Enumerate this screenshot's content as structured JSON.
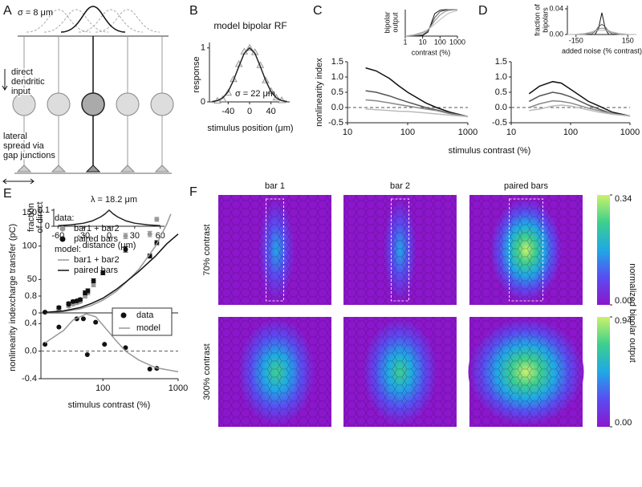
{
  "chart_data": [
    {
      "type": "line",
      "panel": "A",
      "sigma_label": "σ = 8 μm",
      "input_label": [
        "direct",
        "dendritic",
        "input"
      ],
      "spread_label": [
        "lateral",
        "spread via",
        "gap junctions"
      ],
      "annotation": "λ = 18.2 μm",
      "xlabel": "distance (μm)",
      "ylabel": [
        "fraction",
        "of direct"
      ],
      "xlim": [
        -65,
        65
      ],
      "ylim": [
        0,
        0.11
      ],
      "xticks": [
        -60,
        -30,
        0,
        30,
        60
      ],
      "yticks": [
        0,
        0.1
      ],
      "series": [
        {
          "color": "#222222",
          "x": [
            -60,
            -45,
            -30,
            -20,
            -10,
            -5,
            0,
            5,
            10,
            20,
            30,
            45,
            60
          ],
          "values": [
            0.0037,
            0.0084,
            0.019,
            0.033,
            0.058,
            0.076,
            0.1,
            0.076,
            0.058,
            0.033,
            0.019,
            0.0084,
            0.0037
          ]
        }
      ]
    },
    {
      "type": "line",
      "panel": "B",
      "title": "model bipolar RF",
      "annotation": "σ = 22 μm",
      "xlabel": "stimulus position (μm)",
      "ylabel": "response",
      "xlim": [
        -75,
        75
      ],
      "ylim": [
        0,
        1.1
      ],
      "xticks": [
        -40,
        0,
        40
      ],
      "yticks": [
        0,
        1
      ],
      "series": [
        {
          "color": "#999999",
          "marker": "triangle",
          "x": [
            -60,
            -50,
            -40,
            -30,
            -20,
            -10,
            0,
            10,
            20,
            30,
            40,
            50,
            60
          ],
          "values": [
            0.02,
            0.05,
            0.17,
            0.42,
            0.7,
            0.93,
            1.0,
            0.92,
            0.68,
            0.4,
            0.2,
            0.08,
            0.03
          ]
        },
        {
          "color": "#222222",
          "x": [
            -70,
            -60,
            -50,
            -40,
            -30,
            -20,
            -10,
            0,
            10,
            20,
            30,
            40,
            50,
            60,
            70
          ],
          "values": [
            0.006,
            0.024,
            0.076,
            0.19,
            0.4,
            0.66,
            0.9,
            1,
            0.9,
            0.66,
            0.4,
            0.19,
            0.076,
            0.024,
            0.006
          ]
        }
      ]
    },
    {
      "type": "line",
      "panel": "C",
      "xlabel": "stimulus contrast (%)",
      "ylabel": "nonlinearity index",
      "xlog": true,
      "xlim": [
        10,
        1000
      ],
      "ylim": [
        -0.5,
        1.5
      ],
      "xticks": [
        10,
        100,
        1000
      ],
      "yticks": [
        {
          "value": -0.5,
          "label": "-0.5"
        },
        {
          "value": 0,
          "label": "0.0"
        },
        {
          "value": 0.5,
          "label": "0.5"
        },
        {
          "value": 1,
          "label": "1.0"
        },
        {
          "value": 1.5,
          "label": "1.5"
        }
      ],
      "refline": 0,
      "series": [
        {
          "color": "#111111",
          "x": [
            20,
            30,
            50,
            70,
            100,
            200,
            300,
            500,
            1000
          ],
          "values": [
            1.3,
            1.2,
            0.95,
            0.72,
            0.5,
            0.15,
            0.0,
            -0.15,
            -0.3
          ]
        },
        {
          "color": "#555555",
          "x": [
            20,
            30,
            50,
            70,
            100,
            200,
            300,
            500,
            1000
          ],
          "values": [
            0.55,
            0.5,
            0.38,
            0.28,
            0.18,
            0.0,
            -0.08,
            -0.18,
            -0.3
          ]
        },
        {
          "color": "#888888",
          "x": [
            20,
            30,
            50,
            70,
            100,
            200,
            300,
            500,
            1000
          ],
          "values": [
            0.25,
            0.22,
            0.15,
            0.1,
            0.05,
            -0.05,
            -0.1,
            -0.2,
            -0.3
          ]
        },
        {
          "color": "#bbbbbb",
          "x": [
            20,
            30,
            50,
            70,
            100,
            200,
            300,
            500,
            1000
          ],
          "values": [
            -0.05,
            -0.07,
            -0.1,
            -0.12,
            -0.13,
            -0.18,
            -0.21,
            -0.25,
            -0.3
          ]
        }
      ]
    },
    {
      "type": "line",
      "xlabel": "contrast (%)",
      "ylabel": [
        "bipolar",
        "output"
      ],
      "xlog": true,
      "xlim": [
        1,
        1000
      ],
      "ylim": [
        0,
        1
      ],
      "xticks": [
        1,
        10,
        100,
        1000
      ],
      "series": [
        {
          "color": "#111111",
          "x": [
            1,
            3,
            10,
            20,
            30,
            50,
            100,
            200,
            300,
            1000
          ],
          "values": [
            0,
            0,
            0.02,
            0.15,
            0.45,
            0.85,
            0.98,
            1,
            1,
            1
          ]
        },
        {
          "color": "#555555",
          "x": [
            1,
            3,
            10,
            20,
            30,
            50,
            100,
            200,
            300,
            1000
          ],
          "values": [
            0,
            0.01,
            0.05,
            0.2,
            0.4,
            0.7,
            0.92,
            0.98,
            1,
            1
          ]
        },
        {
          "color": "#888888",
          "x": [
            1,
            3,
            10,
            20,
            30,
            50,
            100,
            200,
            300,
            1000
          ],
          "values": [
            0,
            0.03,
            0.12,
            0.25,
            0.38,
            0.58,
            0.8,
            0.93,
            0.97,
            1
          ]
        },
        {
          "color": "#bbbbbb",
          "x": [
            1,
            3,
            10,
            20,
            30,
            50,
            100,
            200,
            300,
            1000
          ],
          "values": [
            0.01,
            0.05,
            0.15,
            0.25,
            0.33,
            0.45,
            0.62,
            0.78,
            0.86,
            0.97
          ]
        }
      ]
    },
    {
      "type": "line",
      "panel": "D",
      "xlog": true,
      "xlim": [
        10,
        1000
      ],
      "ylim": [
        -0.5,
        1.5
      ],
      "xticks": [
        10,
        100,
        1000
      ],
      "yticks": [
        {
          "value": -0.5,
          "label": "-0.5"
        },
        {
          "value": 0,
          "label": "0.0"
        },
        {
          "value": 0.5,
          "label": "0.5"
        },
        {
          "value": 1,
          "label": "1.0"
        },
        {
          "value": 1.5,
          "label": "1.5"
        }
      ],
      "refline": 0,
      "series": [
        {
          "color": "#111111",
          "x": [
            20,
            30,
            50,
            70,
            100,
            200,
            300,
            500,
            1000
          ],
          "values": [
            0.45,
            0.7,
            0.85,
            0.8,
            0.6,
            0.2,
            0.05,
            -0.15,
            -0.28
          ]
        },
        {
          "color": "#555555",
          "x": [
            20,
            30,
            50,
            70,
            100,
            200,
            300,
            500,
            1000
          ],
          "values": [
            0.2,
            0.38,
            0.5,
            0.45,
            0.35,
            0.08,
            -0.05,
            -0.2,
            -0.28
          ]
        },
        {
          "color": "#888888",
          "x": [
            20,
            30,
            50,
            70,
            100,
            200,
            300,
            500,
            1000
          ],
          "values": [
            0.0,
            0.12,
            0.22,
            0.2,
            0.15,
            -0.02,
            -0.1,
            -0.2,
            -0.28
          ]
        },
        {
          "color": "#bbbbbb",
          "x": [
            20,
            30,
            50,
            70,
            100,
            200,
            300,
            500,
            1000
          ],
          "values": [
            -0.1,
            -0.05,
            0.05,
            0.08,
            0.05,
            -0.08,
            -0.15,
            -0.22,
            -0.28
          ]
        }
      ]
    },
    {
      "type": "line",
      "xlabel": "added noise (% contrast)",
      "ylabel": [
        "fraction of",
        "bipolars"
      ],
      "xlim": [
        -200,
        200
      ],
      "ylim": [
        0,
        0.045
      ],
      "xticks": [
        -150,
        150
      ],
      "yticks": [
        {
          "value": 0,
          "label": "0.00"
        },
        {
          "value": 0.04,
          "label": "0.04"
        }
      ],
      "series": [
        {
          "color": "#111111",
          "x": [
            -200,
            -150,
            -100,
            -60,
            -40,
            -20,
            0,
            20,
            40,
            60,
            100,
            150,
            200
          ],
          "values": [
            0,
            0,
            0,
            0,
            0.0001,
            0.0085,
            0.034,
            0.0085,
            0.0001,
            0,
            0,
            0,
            0
          ]
        },
        {
          "color": "#555555",
          "x": [
            -200,
            -150,
            -100,
            -60,
            -40,
            -20,
            0,
            20,
            40,
            60,
            100,
            150,
            200
          ],
          "values": [
            0,
            0,
            0,
            0.0009,
            0.0045,
            0.0117,
            0.016,
            0.0117,
            0.0045,
            0.0009,
            0,
            0,
            0
          ]
        },
        {
          "color": "#888888",
          "x": [
            -200,
            -150,
            -100,
            -60,
            -40,
            -20,
            0,
            20,
            40,
            60,
            100,
            150,
            200
          ],
          "values": [
            0,
            0,
            0.0004,
            0.0032,
            0.0061,
            0.0088,
            0.01,
            0.0088,
            0.0061,
            0.0032,
            0.0004,
            0,
            0
          ]
        },
        {
          "color": "#bbbbbb",
          "x": [
            -200,
            -150,
            -100,
            -60,
            -40,
            -20,
            0,
            20,
            40,
            60,
            100,
            150,
            200
          ],
          "values": [
            0,
            0.0003,
            0.0017,
            0.0041,
            0.0054,
            0.0064,
            0.0067,
            0.0064,
            0.0054,
            0.0041,
            0.0017,
            0.0003,
            0
          ]
        }
      ]
    },
    {
      "type": "line",
      "panel": "E",
      "ylabel": "charge transfer (pC)",
      "xlog": true,
      "xlim": [
        15,
        1000
      ],
      "ylim": [
        0,
        150
      ],
      "yticks": [
        0,
        50,
        100,
        150
      ],
      "groups": [
        {
          "title": "data:",
          "series": [
            {
              "name": "bar1 + bar2",
              "color": "#999999",
              "marker": "circle",
              "x": [
                17,
                26,
                35,
                40,
                45,
                50,
                58,
                63,
                75,
                100,
                200,
                420,
                520
              ],
              "values": [
                1,
                5,
                10,
                13,
                15,
                17,
                25,
                30,
                42,
                60,
                115,
                118,
                140
              ],
              "errors": [
                1,
                2,
                2,
                2,
                2,
                2,
                3,
                3,
                3,
                3,
                4,
                4,
                3
              ]
            },
            {
              "name": "paired bars",
              "color": "#111111",
              "marker": "circle",
              "x": [
                17,
                26,
                35,
                40,
                45,
                50,
                58,
                63,
                75,
                100,
                200,
                420,
                520
              ],
              "values": [
                1,
                8,
                14,
                17,
                18,
                20,
                30,
                33,
                48,
                60,
                95,
                85,
                105
              ],
              "errors": [
                1,
                2,
                2,
                2,
                2,
                2,
                3,
                3,
                3,
                3,
                4,
                3,
                3
              ]
            }
          ]
        },
        {
          "title": "model:",
          "series": [
            {
              "name": "bar1 + bar2",
              "color": "#999999",
              "x": [
                17,
                30,
                50,
                70,
                100,
                150,
                200,
                300,
                500,
                700,
                800
              ],
              "values": [
                0.5,
                2,
                6,
                11,
                19,
                32,
                45,
                65,
                100,
                132,
                148
              ]
            },
            {
              "name": "paired bars",
              "color": "#111111",
              "x": [
                17,
                30,
                50,
                70,
                100,
                150,
                200,
                300,
                500,
                700,
                1000
              ],
              "values": [
                0.7,
                3,
                8,
                14,
                22,
                35,
                46,
                62,
                85,
                103,
                118
              ]
            }
          ]
        }
      ]
    },
    {
      "type": "line",
      "xlabel": "stimulus contrast (%)",
      "ylabel": "nonlinearity index",
      "xlog": true,
      "xlim": [
        15,
        1000
      ],
      "ylim": [
        -0.4,
        0.8
      ],
      "xticks": [
        100,
        1000
      ],
      "yticks": [
        {
          "value": -0.4,
          "label": "-0.4"
        },
        {
          "value": 0,
          "label": "0.0"
        },
        {
          "value": 0.4,
          "label": "0.4"
        },
        {
          "value": 0.8,
          "label": "0.8"
        }
      ],
      "refline": 0,
      "legend": true,
      "series": [
        {
          "name": "data",
          "color": "#111111",
          "marker": "circle",
          "x": [
            17,
            26,
            35,
            45,
            55,
            62,
            80,
            105,
            200,
            420,
            520
          ],
          "values": [
            0.1,
            0.35,
            0.68,
            0.47,
            0.47,
            -0.05,
            0.42,
            0.1,
            0.05,
            -0.26,
            -0.25
          ]
        },
        {
          "name": "model",
          "color": "#999999",
          "x": [
            17,
            30,
            40,
            60,
            80,
            100,
            150,
            200,
            300,
            500,
            1000
          ],
          "values": [
            0.12,
            0.3,
            0.45,
            0.54,
            0.5,
            0.38,
            0.15,
            0.0,
            -0.13,
            -0.24,
            -0.3
          ]
        }
      ]
    },
    {
      "type": "heatmap",
      "panel": "F",
      "columns": [
        "bar 1",
        "bar 2",
        "paired bars"
      ],
      "rows": [
        "70% contrast",
        "300% contrast"
      ],
      "colorbar_label": "normalized bipolar output",
      "colors": [
        "#8c16cc",
        "#5a4cf2",
        "#1fa8e6",
        "#3ccf8e",
        "#cbf26a"
      ],
      "colorbars": [
        {
          "ylim": [
            0,
            0.34
          ],
          "yticks": [
            {
              "value": 0,
              "label": "0.00"
            },
            {
              "value": 0.34,
              "label": "0.34"
            }
          ]
        },
        {
          "ylim": [
            0,
            0.94
          ],
          "yticks": [
            {
              "value": 0,
              "label": "0.00"
            },
            {
              "value": 0.94,
              "label": "0.94"
            }
          ]
        }
      ]
    }
  ]
}
